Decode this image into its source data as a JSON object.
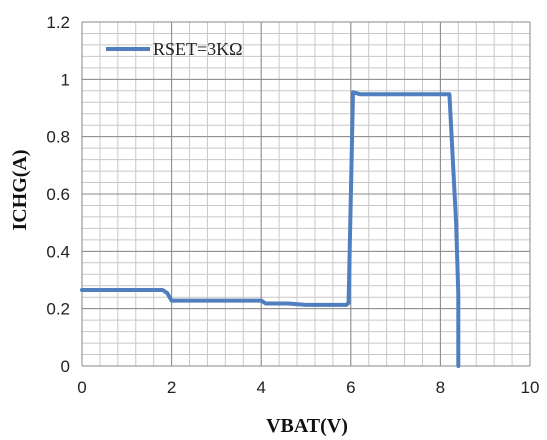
{
  "chart_data": {
    "type": "line",
    "title": "",
    "xlabel": "VBAT(V)",
    "ylabel": "ICHG(A)",
    "xlim": [
      0,
      10
    ],
    "ylim": [
      0,
      1.2
    ],
    "xticks": [
      "0",
      "2",
      "4",
      "6",
      "8",
      "10"
    ],
    "yticks": [
      "0",
      "0.2",
      "0.4",
      "0.6",
      "0.8",
      "1",
      "1.2"
    ],
    "grid": "on (major and minor)",
    "legend_position": "top-left",
    "color": "#4F7FBE",
    "series": [
      {
        "name": "RSET=3KΩ",
        "x": [
          0,
          1.8,
          1.9,
          2.0,
          4.0,
          4.1,
          4.6,
          5.0,
          5.9,
          5.95,
          6.05,
          6.2,
          8.2,
          8.35,
          8.4,
          8.4
        ],
        "y": [
          0.265,
          0.265,
          0.255,
          0.228,
          0.228,
          0.218,
          0.218,
          0.213,
          0.213,
          0.22,
          0.955,
          0.948,
          0.948,
          0.5,
          0.25,
          0
        ]
      }
    ]
  }
}
